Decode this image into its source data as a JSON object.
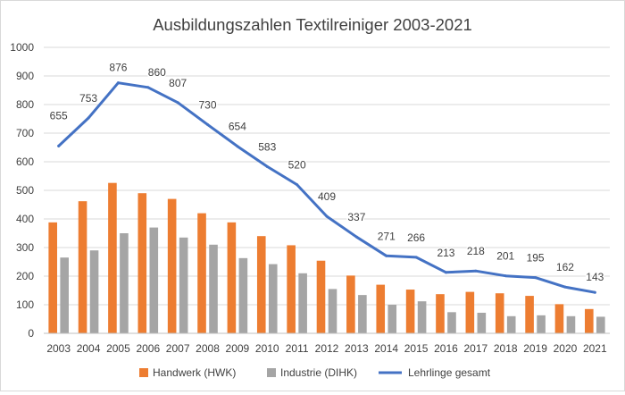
{
  "chart_data": {
    "type": "bar",
    "title": "Ausbildungszahlen Textilreiniger 2003-2021",
    "xlabel": "",
    "ylabel": "",
    "ylim": [
      0,
      1000
    ],
    "y_ticks": [
      0,
      100,
      200,
      300,
      400,
      500,
      600,
      700,
      800,
      900,
      1000
    ],
    "grid": true,
    "legend_position": "bottom",
    "categories": [
      "2003",
      "2004",
      "2005",
      "2006",
      "2007",
      "2008",
      "2009",
      "2010",
      "2011",
      "2012",
      "2013",
      "2014",
      "2015",
      "2016",
      "2017",
      "2018",
      "2019",
      "2020",
      "2021"
    ],
    "series": [
      {
        "name": "Handwerk (HWK)",
        "type": "bar",
        "color": "#ED7D31",
        "values": [
          388,
          462,
          526,
          490,
          470,
          420,
          388,
          340,
          308,
          254,
          202,
          170,
          153,
          137,
          145,
          140,
          131,
          102,
          85
        ]
      },
      {
        "name": "Industrie (DIHK)",
        "type": "bar",
        "color": "#A5A5A5",
        "values": [
          265,
          290,
          350,
          370,
          335,
          310,
          263,
          242,
          210,
          155,
          134,
          100,
          112,
          74,
          72,
          60,
          63,
          60,
          58
        ]
      },
      {
        "name": "Lehrlinge gesamt",
        "type": "line",
        "color": "#4472C4",
        "values": [
          655,
          753,
          876,
          860,
          807,
          730,
          654,
          583,
          520,
          409,
          337,
          271,
          266,
          213,
          218,
          201,
          195,
          162,
          143
        ],
        "labels": [
          "655",
          "753",
          "876",
          "860",
          "807",
          "730",
          "654",
          "583",
          "520",
          "409",
          "337",
          "271",
          "266",
          "213",
          "218",
          "201",
          "195",
          "162",
          "143"
        ]
      }
    ]
  }
}
